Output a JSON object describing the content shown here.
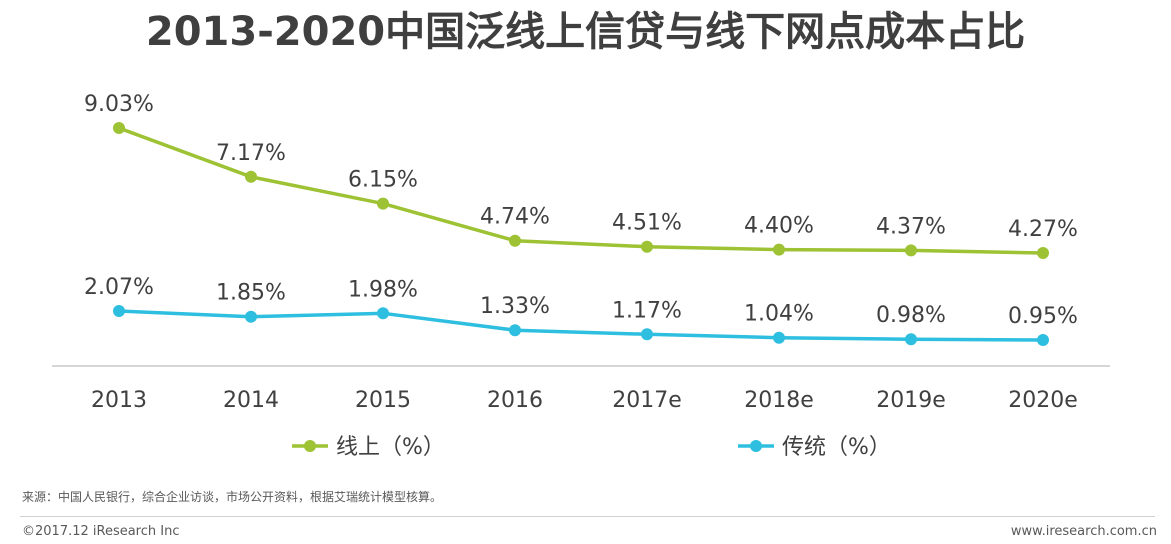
{
  "chart_data": {
    "type": "line",
    "title": "2013-2020中国泛线上信贷与线下网点成本占比",
    "categories": [
      "2013",
      "2014",
      "2015",
      "2016",
      "2017e",
      "2018e",
      "2019e",
      "2020e"
    ],
    "series": [
      {
        "name": "线上（%）",
        "values": [
          9.03,
          7.17,
          6.15,
          4.74,
          4.51,
          4.4,
          4.37,
          4.27
        ],
        "labels": [
          "9.03%",
          "7.17%",
          "6.15%",
          "4.74%",
          "4.51%",
          "4.40%",
          "4.37%",
          "4.27%"
        ],
        "color": "#9dc233"
      },
      {
        "name": "传统（%）",
        "values": [
          2.07,
          1.85,
          1.98,
          1.33,
          1.17,
          1.04,
          0.98,
          0.95
        ],
        "labels": [
          "2.07%",
          "1.85%",
          "1.98%",
          "1.33%",
          "1.17%",
          "1.04%",
          "0.98%",
          "0.95%"
        ],
        "color": "#2ebfe0"
      }
    ],
    "legend_position": "bottom",
    "grid": false
  },
  "footer": {
    "source": "来源：中国人民银行，综合企业访谈，市场公开资料，根据艾瑞统计模型核算。",
    "copyright": "©2017.12 iResearch Inc",
    "website": "www.iresearch.com.cn"
  }
}
